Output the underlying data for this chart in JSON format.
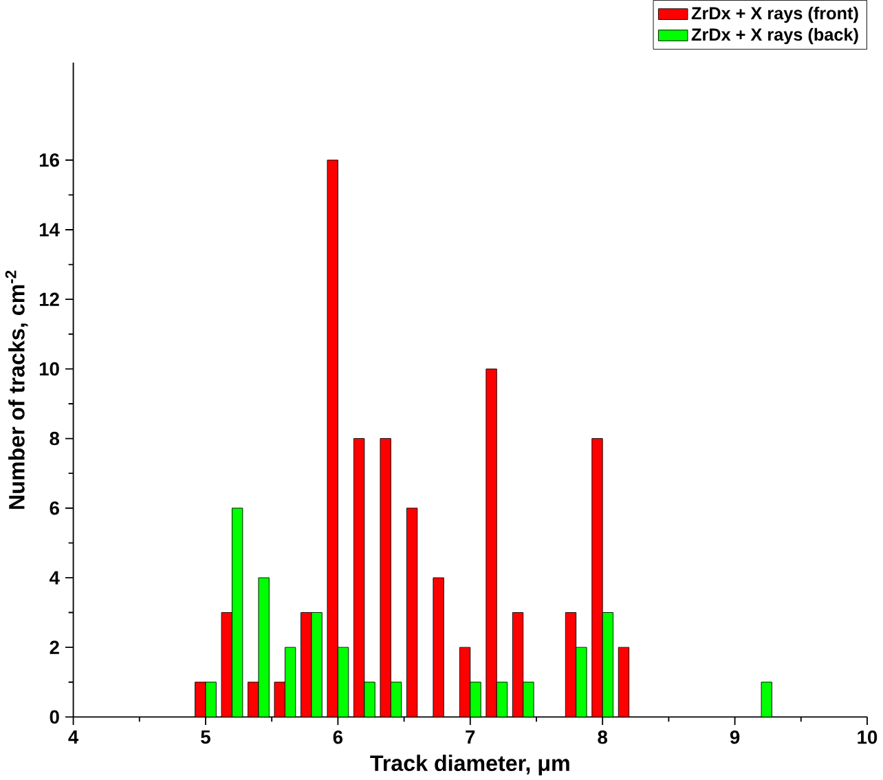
{
  "chart_data": {
    "type": "bar",
    "xlabel": "Track diameter, μm",
    "ylabel": "Number of tracks, cm$^{-2}$",
    "series": [
      {
        "name": "ZrDx + X rays (front)",
        "color": "#ff0000",
        "x": [
          5.0,
          5.2,
          5.4,
          5.6,
          5.8,
          6.0,
          6.2,
          6.4,
          6.6,
          6.8,
          7.0,
          7.2,
          7.4,
          7.8,
          8.0,
          8.2
        ],
        "values": [
          1,
          3,
          1,
          1,
          3,
          16,
          8,
          8,
          6,
          4,
          2,
          10,
          3,
          3,
          8,
          2
        ]
      },
      {
        "name": "ZrDx + X rays (back)",
        "color": "#00ff00",
        "x": [
          5.0,
          5.2,
          5.4,
          5.6,
          5.8,
          6.0,
          6.2,
          6.4,
          7.0,
          7.2,
          7.4,
          7.8,
          8.0,
          9.2
        ],
        "values": [
          1,
          6,
          4,
          2,
          3,
          2,
          1,
          1,
          1,
          1,
          1,
          2,
          3,
          1
        ]
      }
    ],
    "xlim": [
      4,
      10
    ],
    "xticks": [
      4,
      5,
      6,
      7,
      8,
      9,
      10
    ],
    "ylim": [
      0,
      18.8
    ],
    "yticks": [
      0,
      2,
      4,
      6,
      8,
      10,
      12,
      14,
      16
    ],
    "grid": false,
    "legend": "top right"
  }
}
